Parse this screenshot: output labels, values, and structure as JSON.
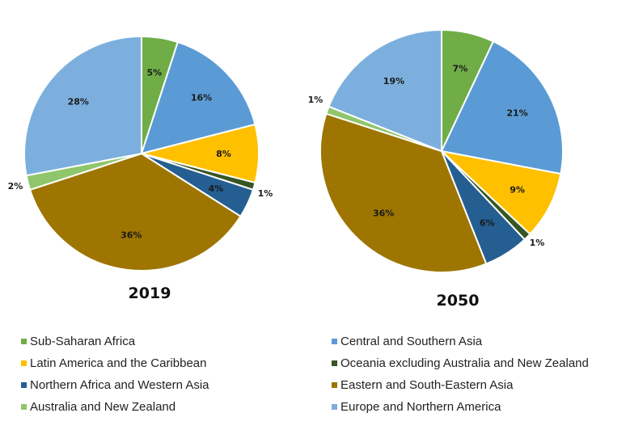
{
  "chart_data": [
    {
      "type": "pie",
      "title": "2019",
      "start": "top",
      "direction": "clockwise",
      "categories": [
        "Sub-Saharan Africa",
        "Central and Southern Asia",
        "Latin America and the Caribbean",
        "Oceania excluding Australia and New Zealand",
        "Northern Africa and Western Asia",
        "Eastern and South-Eastern Asia",
        "Australia and New Zealand",
        "Europe and Northern America"
      ],
      "values": [
        5,
        16,
        8,
        1,
        4,
        36,
        2,
        28
      ],
      "labels": [
        "5%",
        "16%",
        "8%",
        "1%",
        "4%",
        "36%",
        "2%",
        "28%"
      ]
    },
    {
      "type": "pie",
      "title": "2050",
      "start": "top",
      "direction": "clockwise",
      "categories": [
        "Sub-Saharan Africa",
        "Central and Southern Asia",
        "Latin America and the Caribbean",
        "Oceania excluding Australia and New Zealand",
        "Northern Africa and Western Asia",
        "Eastern and South-Eastern Asia",
        "Australia and New Zealand",
        "Europe and Northern America"
      ],
      "values": [
        7,
        21,
        9,
        1,
        6,
        36,
        1,
        19
      ],
      "labels": [
        "7%",
        "21%",
        "9%",
        "1%",
        "6%",
        "36%",
        "1%",
        "19%"
      ]
    }
  ],
  "colors": {
    "Sub-Saharan Africa": "#70ad47",
    "Central and Southern Asia": "#5b9bd5",
    "Latin America and the Caribbean": "#ffc000",
    "Oceania excluding Australia and New Zealand": "#375623",
    "Northern Africa and Western Asia": "#255e91",
    "Eastern and South-Eastern Asia": "#9e7500",
    "Australia and New Zealand": "#8fc66b",
    "Europe and Northern America": "#7cafdd"
  },
  "legend": {
    "placement": "bottom",
    "items": [
      "Sub-Saharan Africa",
      "Central and Southern Asia",
      "Latin America and the Caribbean",
      "Oceania excluding Australia and New Zealand",
      "Northern Africa and Western Asia",
      "Eastern and South-Eastern Asia",
      "Australia and New Zealand",
      "Europe and Northern America"
    ]
  }
}
